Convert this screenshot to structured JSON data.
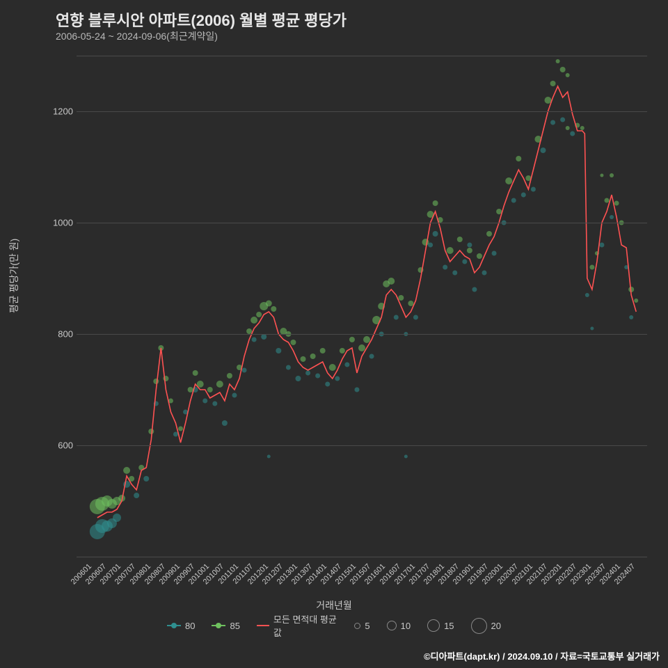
{
  "title": "연향 블루시안 아파트(2006) 월별 평균 평당가",
  "subtitle": "2006-05-24 ~ 2024-09-06(최근계약일)",
  "y_label": "평균 평당가(만 원)",
  "x_label": "거래년월",
  "credit": "©디아파트(dapt.kr) / 2024.09.10 / 자료=국토교통부 실거래가",
  "background_color": "#2b2b2b",
  "grid_color": "#4a4a4a",
  "text_color": "#c8c8c8",
  "title_color": "#e8e8e8",
  "title_fontsize": 22,
  "subtitle_fontsize": 14,
  "label_fontsize": 14,
  "tick_fontsize": 13,
  "xtick_fontsize": 11,
  "ylim": [
    400,
    1300
  ],
  "yticks": [
    600,
    800,
    1000,
    1200
  ],
  "xticks": [
    "200601",
    "200607",
    "200701",
    "200707",
    "200801",
    "200807",
    "200901",
    "200907",
    "201001",
    "201007",
    "201101",
    "201107",
    "201201",
    "201207",
    "201301",
    "201307",
    "201401",
    "201407",
    "201501",
    "201507",
    "201601",
    "201607",
    "201701",
    "201707",
    "201801",
    "201807",
    "201901",
    "201907",
    "202001",
    "202007",
    "202101",
    "202107",
    "202201",
    "202207",
    "202301",
    "202307",
    "202401",
    "202407"
  ],
  "line_color": "#ff5252",
  "line_width": 1.6,
  "series_colors": {
    "80": "#2f8f8f",
    "85": "#6fc15f"
  },
  "scatter_opacity": 0.55,
  "legend": {
    "series": [
      {
        "label": "80",
        "color": "#2f8f8f"
      },
      {
        "label": "85",
        "color": "#6fc15f"
      }
    ],
    "line_label": "모든 면적대 평균값",
    "sizes": [
      {
        "label": "5",
        "d": 9
      },
      {
        "label": "10",
        "d": 14
      },
      {
        "label": "15",
        "d": 18
      },
      {
        "label": "20",
        "d": 23
      }
    ]
  },
  "line_series": [
    {
      "x": "200605",
      "y": 470
    },
    {
      "x": "200607",
      "y": 475
    },
    {
      "x": "200609",
      "y": 480
    },
    {
      "x": "200611",
      "y": 480
    },
    {
      "x": "200701",
      "y": 485
    },
    {
      "x": "200703",
      "y": 500
    },
    {
      "x": "200705",
      "y": 545
    },
    {
      "x": "200707",
      "y": 530
    },
    {
      "x": "200709",
      "y": 520
    },
    {
      "x": "200711",
      "y": 555
    },
    {
      "x": "200801",
      "y": 560
    },
    {
      "x": "200803",
      "y": 610
    },
    {
      "x": "200805",
      "y": 700
    },
    {
      "x": "200807",
      "y": 775
    },
    {
      "x": "200809",
      "y": 700
    },
    {
      "x": "200811",
      "y": 660
    },
    {
      "x": "200901",
      "y": 640
    },
    {
      "x": "200903",
      "y": 605
    },
    {
      "x": "200905",
      "y": 640
    },
    {
      "x": "200907",
      "y": 680
    },
    {
      "x": "200909",
      "y": 710
    },
    {
      "x": "200911",
      "y": 700
    },
    {
      "x": "201001",
      "y": 700
    },
    {
      "x": "201003",
      "y": 685
    },
    {
      "x": "201005",
      "y": 690
    },
    {
      "x": "201007",
      "y": 695
    },
    {
      "x": "201009",
      "y": 680
    },
    {
      "x": "201011",
      "y": 710
    },
    {
      "x": "201101",
      "y": 700
    },
    {
      "x": "201103",
      "y": 720
    },
    {
      "x": "201105",
      "y": 760
    },
    {
      "x": "201107",
      "y": 790
    },
    {
      "x": "201109",
      "y": 810
    },
    {
      "x": "201111",
      "y": 820
    },
    {
      "x": "201201",
      "y": 835
    },
    {
      "x": "201203",
      "y": 840
    },
    {
      "x": "201205",
      "y": 830
    },
    {
      "x": "201207",
      "y": 800
    },
    {
      "x": "201209",
      "y": 790
    },
    {
      "x": "201211",
      "y": 785
    },
    {
      "x": "201301",
      "y": 770
    },
    {
      "x": "201303",
      "y": 750
    },
    {
      "x": "201305",
      "y": 740
    },
    {
      "x": "201307",
      "y": 735
    },
    {
      "x": "201309",
      "y": 740
    },
    {
      "x": "201311",
      "y": 745
    },
    {
      "x": "201401",
      "y": 750
    },
    {
      "x": "201403",
      "y": 730
    },
    {
      "x": "201405",
      "y": 720
    },
    {
      "x": "201407",
      "y": 735
    },
    {
      "x": "201409",
      "y": 755
    },
    {
      "x": "201411",
      "y": 770
    },
    {
      "x": "201501",
      "y": 775
    },
    {
      "x": "201503",
      "y": 730
    },
    {
      "x": "201505",
      "y": 760
    },
    {
      "x": "201507",
      "y": 775
    },
    {
      "x": "201509",
      "y": 790
    },
    {
      "x": "201511",
      "y": 810
    },
    {
      "x": "201601",
      "y": 830
    },
    {
      "x": "201603",
      "y": 870
    },
    {
      "x": "201605",
      "y": 880
    },
    {
      "x": "201607",
      "y": 870
    },
    {
      "x": "201609",
      "y": 850
    },
    {
      "x": "201611",
      "y": 830
    },
    {
      "x": "201701",
      "y": 840
    },
    {
      "x": "201703",
      "y": 860
    },
    {
      "x": "201705",
      "y": 900
    },
    {
      "x": "201707",
      "y": 950
    },
    {
      "x": "201709",
      "y": 1000
    },
    {
      "x": "201711",
      "y": 1020
    },
    {
      "x": "201801",
      "y": 990
    },
    {
      "x": "201803",
      "y": 950
    },
    {
      "x": "201805",
      "y": 930
    },
    {
      "x": "201807",
      "y": 940
    },
    {
      "x": "201809",
      "y": 950
    },
    {
      "x": "201811",
      "y": 940
    },
    {
      "x": "201901",
      "y": 935
    },
    {
      "x": "201903",
      "y": 910
    },
    {
      "x": "201905",
      "y": 920
    },
    {
      "x": "201907",
      "y": 940
    },
    {
      "x": "201909",
      "y": 960
    },
    {
      "x": "201911",
      "y": 975
    },
    {
      "x": "202001",
      "y": 1000
    },
    {
      "x": "202003",
      "y": 1030
    },
    {
      "x": "202005",
      "y": 1055
    },
    {
      "x": "202007",
      "y": 1075
    },
    {
      "x": "202009",
      "y": 1095
    },
    {
      "x": "202011",
      "y": 1080
    },
    {
      "x": "202101",
      "y": 1060
    },
    {
      "x": "202103",
      "y": 1095
    },
    {
      "x": "202105",
      "y": 1130
    },
    {
      "x": "202107",
      "y": 1165
    },
    {
      "x": "202109",
      "y": 1200
    },
    {
      "x": "202111",
      "y": 1225
    },
    {
      "x": "202201",
      "y": 1245
    },
    {
      "x": "202203",
      "y": 1225
    },
    {
      "x": "202205",
      "y": 1235
    },
    {
      "x": "202207",
      "y": 1195
    },
    {
      "x": "202209",
      "y": 1165
    },
    {
      "x": "202211",
      "y": 1165
    },
    {
      "x": "202212",
      "y": 1160
    },
    {
      "x": "202301",
      "y": 900
    },
    {
      "x": "202303",
      "y": 880
    },
    {
      "x": "202305",
      "y": 930
    },
    {
      "x": "202307",
      "y": 1000
    },
    {
      "x": "202309",
      "y": 1020
    },
    {
      "x": "202311",
      "y": 1050
    },
    {
      "x": "202401",
      "y": 1010
    },
    {
      "x": "202403",
      "y": 960
    },
    {
      "x": "202405",
      "y": 955
    },
    {
      "x": "202407",
      "y": 870
    },
    {
      "x": "202409",
      "y": 840
    }
  ],
  "scatter_80": [
    {
      "x": "200605",
      "y": 445,
      "s": 22
    },
    {
      "x": "200607",
      "y": 455,
      "s": 20
    },
    {
      "x": "200609",
      "y": 455,
      "s": 16
    },
    {
      "x": "200611",
      "y": 460,
      "s": 14
    },
    {
      "x": "200701",
      "y": 470,
      "s": 12
    },
    {
      "x": "200705",
      "y": 530,
      "s": 10
    },
    {
      "x": "200709",
      "y": 510,
      "s": 8
    },
    {
      "x": "200801",
      "y": 540,
      "s": 8
    },
    {
      "x": "200805",
      "y": 675,
      "s": 7
    },
    {
      "x": "200901",
      "y": 620,
      "s": 7
    },
    {
      "x": "200905",
      "y": 660,
      "s": 7
    },
    {
      "x": "200909",
      "y": 700,
      "s": 8
    },
    {
      "x": "201001",
      "y": 680,
      "s": 7
    },
    {
      "x": "201005",
      "y": 675,
      "s": 7
    },
    {
      "x": "201009",
      "y": 640,
      "s": 8
    },
    {
      "x": "201101",
      "y": 690,
      "s": 7
    },
    {
      "x": "201105",
      "y": 735,
      "s": 7
    },
    {
      "x": "201109",
      "y": 790,
      "s": 7
    },
    {
      "x": "201201",
      "y": 795,
      "s": 8
    },
    {
      "x": "201203",
      "y": 580,
      "s": 5
    },
    {
      "x": "201207",
      "y": 770,
      "s": 8
    },
    {
      "x": "201211",
      "y": 740,
      "s": 7
    },
    {
      "x": "201303",
      "y": 720,
      "s": 8
    },
    {
      "x": "201307",
      "y": 730,
      "s": 7
    },
    {
      "x": "201311",
      "y": 725,
      "s": 7
    },
    {
      "x": "201403",
      "y": 710,
      "s": 7
    },
    {
      "x": "201407",
      "y": 720,
      "s": 7
    },
    {
      "x": "201411",
      "y": 745,
      "s": 7
    },
    {
      "x": "201503",
      "y": 700,
      "s": 7
    },
    {
      "x": "201509",
      "y": 760,
      "s": 7
    },
    {
      "x": "201601",
      "y": 800,
      "s": 7
    },
    {
      "x": "201607",
      "y": 830,
      "s": 7
    },
    {
      "x": "201611",
      "y": 800,
      "s": 6
    },
    {
      "x": "201611",
      "y": 580,
      "s": 5
    },
    {
      "x": "201703",
      "y": 830,
      "s": 7
    },
    {
      "x": "201709",
      "y": 960,
      "s": 7
    },
    {
      "x": "201711",
      "y": 980,
      "s": 8
    },
    {
      "x": "201803",
      "y": 920,
      "s": 7
    },
    {
      "x": "201807",
      "y": 910,
      "s": 7
    },
    {
      "x": "201811",
      "y": 930,
      "s": 7
    },
    {
      "x": "201901",
      "y": 960,
      "s": 7
    },
    {
      "x": "201903",
      "y": 880,
      "s": 7
    },
    {
      "x": "201907",
      "y": 910,
      "s": 7
    },
    {
      "x": "201911",
      "y": 945,
      "s": 7
    },
    {
      "x": "202003",
      "y": 1000,
      "s": 7
    },
    {
      "x": "202007",
      "y": 1040,
      "s": 7
    },
    {
      "x": "202011",
      "y": 1050,
      "s": 7
    },
    {
      "x": "202103",
      "y": 1060,
      "s": 7
    },
    {
      "x": "202107",
      "y": 1130,
      "s": 8
    },
    {
      "x": "202111",
      "y": 1180,
      "s": 7
    },
    {
      "x": "202203",
      "y": 1185,
      "s": 7
    },
    {
      "x": "202207",
      "y": 1160,
      "s": 7
    },
    {
      "x": "202301",
      "y": 870,
      "s": 6
    },
    {
      "x": "202303",
      "y": 810,
      "s": 5
    },
    {
      "x": "202307",
      "y": 960,
      "s": 7
    },
    {
      "x": "202311",
      "y": 1010,
      "s": 6
    },
    {
      "x": "202405",
      "y": 920,
      "s": 6
    },
    {
      "x": "202407",
      "y": 830,
      "s": 6
    }
  ],
  "scatter_85": [
    {
      "x": "200605",
      "y": 490,
      "s": 22
    },
    {
      "x": "200607",
      "y": 495,
      "s": 20
    },
    {
      "x": "200609",
      "y": 500,
      "s": 16
    },
    {
      "x": "200611",
      "y": 495,
      "s": 14
    },
    {
      "x": "200701",
      "y": 500,
      "s": 12
    },
    {
      "x": "200703",
      "y": 505,
      "s": 10
    },
    {
      "x": "200705",
      "y": 555,
      "s": 10
    },
    {
      "x": "200707",
      "y": 540,
      "s": 8
    },
    {
      "x": "200711",
      "y": 560,
      "s": 8
    },
    {
      "x": "200803",
      "y": 625,
      "s": 8
    },
    {
      "x": "200805",
      "y": 715,
      "s": 8
    },
    {
      "x": "200807",
      "y": 775,
      "s": 8
    },
    {
      "x": "200809",
      "y": 720,
      "s": 8
    },
    {
      "x": "200811",
      "y": 680,
      "s": 7
    },
    {
      "x": "200903",
      "y": 630,
      "s": 7
    },
    {
      "x": "200907",
      "y": 700,
      "s": 8
    },
    {
      "x": "200909",
      "y": 730,
      "s": 8
    },
    {
      "x": "200911",
      "y": 710,
      "s": 10
    },
    {
      "x": "201003",
      "y": 700,
      "s": 8
    },
    {
      "x": "201007",
      "y": 710,
      "s": 10
    },
    {
      "x": "201011",
      "y": 725,
      "s": 8
    },
    {
      "x": "201103",
      "y": 740,
      "s": 8
    },
    {
      "x": "201107",
      "y": 805,
      "s": 8
    },
    {
      "x": "201109",
      "y": 825,
      "s": 10
    },
    {
      "x": "201111",
      "y": 835,
      "s": 8
    },
    {
      "x": "201201",
      "y": 850,
      "s": 12
    },
    {
      "x": "201203",
      "y": 855,
      "s": 9
    },
    {
      "x": "201205",
      "y": 845,
      "s": 8
    },
    {
      "x": "201209",
      "y": 805,
      "s": 10
    },
    {
      "x": "201211",
      "y": 800,
      "s": 8
    },
    {
      "x": "201301",
      "y": 785,
      "s": 8
    },
    {
      "x": "201305",
      "y": 755,
      "s": 8
    },
    {
      "x": "201309",
      "y": 760,
      "s": 8
    },
    {
      "x": "201401",
      "y": 770,
      "s": 8
    },
    {
      "x": "201405",
      "y": 740,
      "s": 10
    },
    {
      "x": "201409",
      "y": 770,
      "s": 8
    },
    {
      "x": "201501",
      "y": 790,
      "s": 8
    },
    {
      "x": "201505",
      "y": 775,
      "s": 10
    },
    {
      "x": "201507",
      "y": 790,
      "s": 10
    },
    {
      "x": "201511",
      "y": 825,
      "s": 12
    },
    {
      "x": "201601",
      "y": 850,
      "s": 10
    },
    {
      "x": "201603",
      "y": 890,
      "s": 10
    },
    {
      "x": "201605",
      "y": 895,
      "s": 10
    },
    {
      "x": "201609",
      "y": 865,
      "s": 8
    },
    {
      "x": "201701",
      "y": 855,
      "s": 8
    },
    {
      "x": "201705",
      "y": 915,
      "s": 8
    },
    {
      "x": "201707",
      "y": 965,
      "s": 10
    },
    {
      "x": "201709",
      "y": 1015,
      "s": 10
    },
    {
      "x": "201711",
      "y": 1035,
      "s": 8
    },
    {
      "x": "201801",
      "y": 1005,
      "s": 8
    },
    {
      "x": "201805",
      "y": 950,
      "s": 10
    },
    {
      "x": "201809",
      "y": 970,
      "s": 8
    },
    {
      "x": "201901",
      "y": 950,
      "s": 8
    },
    {
      "x": "201905",
      "y": 940,
      "s": 8
    },
    {
      "x": "201909",
      "y": 980,
      "s": 8
    },
    {
      "x": "202001",
      "y": 1020,
      "s": 8
    },
    {
      "x": "202005",
      "y": 1075,
      "s": 10
    },
    {
      "x": "202009",
      "y": 1115,
      "s": 8
    },
    {
      "x": "202101",
      "y": 1080,
      "s": 8
    },
    {
      "x": "202105",
      "y": 1150,
      "s": 10
    },
    {
      "x": "202109",
      "y": 1220,
      "s": 10
    },
    {
      "x": "202111",
      "y": 1250,
      "s": 8
    },
    {
      "x": "202201",
      "y": 1290,
      "s": 6
    },
    {
      "x": "202203",
      "y": 1275,
      "s": 8
    },
    {
      "x": "202205",
      "y": 1265,
      "s": 6
    },
    {
      "x": "202205",
      "y": 1170,
      "s": 6
    },
    {
      "x": "202209",
      "y": 1175,
      "s": 7
    },
    {
      "x": "202211",
      "y": 1170,
      "s": 6
    },
    {
      "x": "202303",
      "y": 920,
      "s": 7
    },
    {
      "x": "202305",
      "y": 945,
      "s": 6
    },
    {
      "x": "202307",
      "y": 1085,
      "s": 5
    },
    {
      "x": "202309",
      "y": 1040,
      "s": 7
    },
    {
      "x": "202311",
      "y": 1085,
      "s": 6
    },
    {
      "x": "202401",
      "y": 1035,
      "s": 7
    },
    {
      "x": "202403",
      "y": 1000,
      "s": 7
    },
    {
      "x": "202407",
      "y": 880,
      "s": 8
    },
    {
      "x": "202409",
      "y": 860,
      "s": 6
    }
  ]
}
